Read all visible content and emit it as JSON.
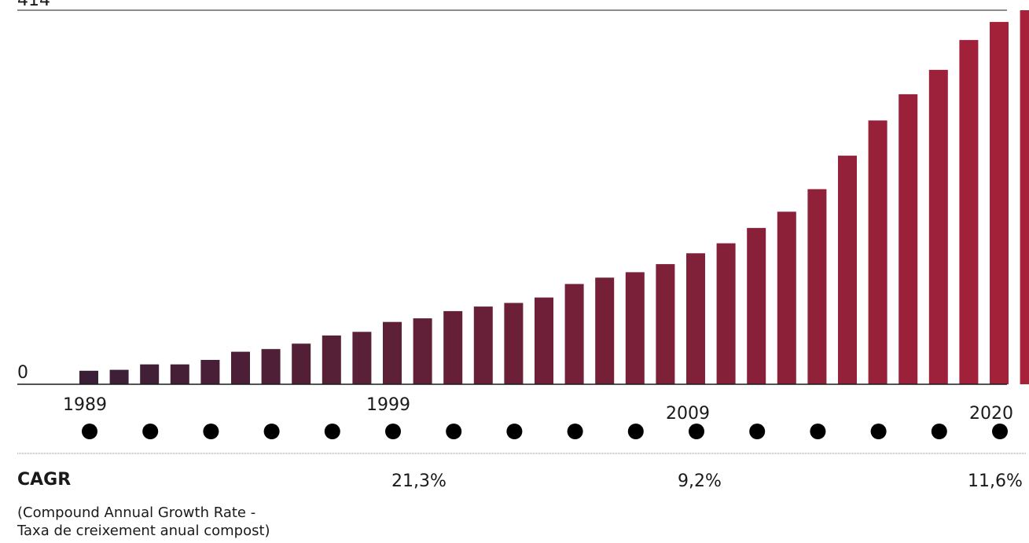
{
  "chart_data": {
    "type": "bar",
    "x": [
      1989,
      1990,
      1991,
      1992,
      1993,
      1994,
      1995,
      1996,
      1997,
      1998,
      1999,
      2000,
      2001,
      2002,
      2003,
      2004,
      2005,
      2006,
      2007,
      2008,
      2009,
      2010,
      2011,
      2012,
      2013,
      2014,
      2015,
      2016,
      2017,
      2018,
      2019,
      2020
    ],
    "values": [
      15,
      16,
      22,
      22,
      27,
      36,
      39,
      45,
      54,
      58,
      69,
      73,
      81,
      86,
      90,
      96,
      111,
      118,
      124,
      133,
      145,
      156,
      173,
      191,
      216,
      253,
      292,
      321,
      348,
      381,
      401,
      414
    ],
    "ylim": [
      0,
      414
    ],
    "y_tick_labels": [
      "0",
      "414"
    ],
    "x_tick_labels": [
      "1989",
      "1999",
      "2009",
      "2020"
    ],
    "grid": false,
    "colors": {
      "start": "#3a1f36",
      "end": "#a8213a",
      "axis": "#1a1a1a",
      "dots": "#000000",
      "divider": "#888888"
    }
  },
  "cagr": {
    "title": "CAGR",
    "subtitle_line1": "(Compound Annual Growth Rate -",
    "subtitle_line2": "Taxa de creixement anual compost)",
    "values": [
      "21,3%",
      "9,2%",
      "11,6%"
    ]
  }
}
